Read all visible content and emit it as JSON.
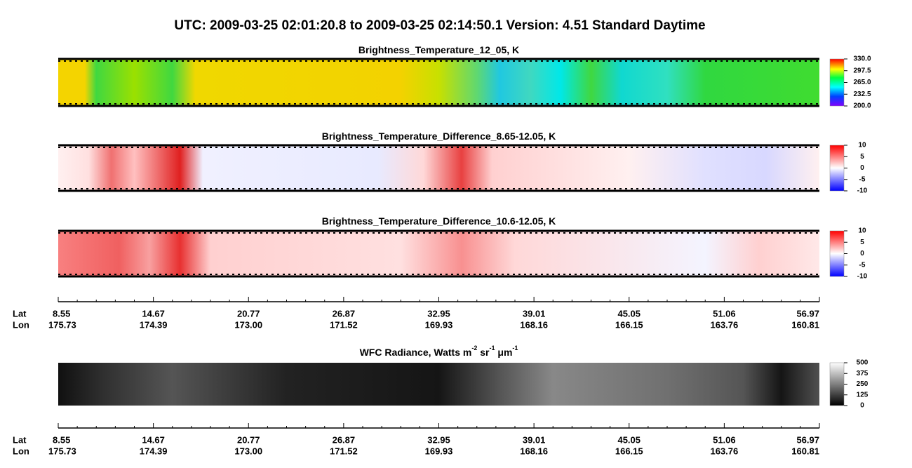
{
  "title": "UTC:  2009-03-25   02:01:20.8  to  2009-03-25   02:14:50.1    Version: 4.51  Standard Daytime",
  "panels": [
    {
      "title": [
        "Brightness_Temperature_12_05, K"
      ],
      "colormap": "rainbow",
      "range": [
        200,
        330
      ],
      "ticks": [
        {
          "value": 330,
          "label": "330.0"
        },
        297.5,
        {
          "value": 265,
          "label": "265.0"
        },
        232.5,
        {
          "value": 200,
          "label": "200.0"
        }
      ]
    },
    {
      "title": [
        "Brightness_Temperature_Difference_8.65-12.05, K"
      ],
      "colormap": "diverging",
      "range": [
        -10,
        10
      ],
      "ticks": [
        10,
        5,
        0,
        -5,
        -10
      ]
    },
    {
      "title": [
        "Brightness_Temperature_Difference_10.6-12.05, K"
      ],
      "colormap": "diverging",
      "range": [
        -10,
        10
      ],
      "ticks": [
        10,
        5,
        0,
        -5,
        -10
      ]
    },
    {
      "title": [
        "WFC Radiance, Watts m",
        "-2",
        " sr",
        "-1",
        " μm",
        "-1"
      ],
      "colormap": "gray",
      "range": [
        0,
        500
      ],
      "ticks": [
        500,
        375,
        250,
        125,
        0
      ]
    }
  ],
  "track_axes": [
    {
      "lat_label": "Lat",
      "lon_label": "Lon",
      "lat": [
        "8.55",
        "14.67",
        "20.77",
        "26.87",
        "32.95",
        "39.01",
        "45.05",
        "51.06",
        "56.97"
      ],
      "lon": [
        "175.73",
        "174.39",
        "173.00",
        "171.52",
        "169.93",
        "168.16",
        "166.15",
        "163.76",
        "160.81"
      ]
    },
    {
      "lat_label": "Lat",
      "lon_label": "Lon",
      "lat": [
        "8.55",
        "14.67",
        "20.77",
        "26.87",
        "32.95",
        "39.01",
        "45.05",
        "51.06",
        "56.97"
      ],
      "lon": [
        "175.73",
        "174.39",
        "173.00",
        "171.52",
        "169.93",
        "168.16",
        "166.15",
        "163.76",
        "160.81"
      ]
    }
  ]
}
